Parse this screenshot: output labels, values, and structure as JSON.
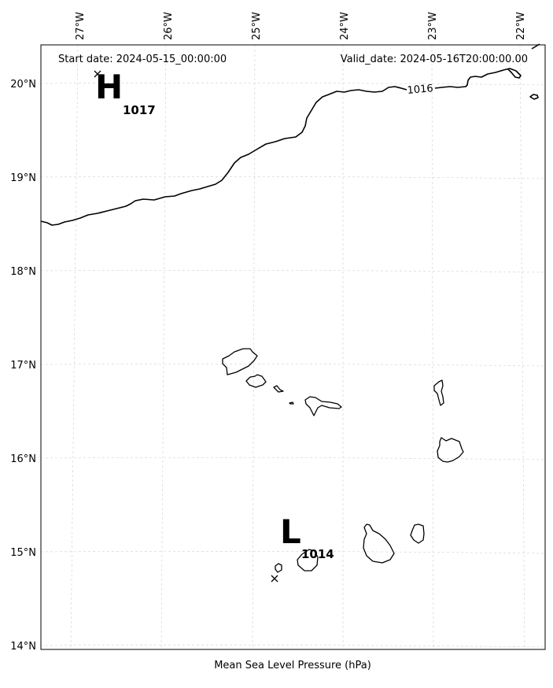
{
  "header": {
    "start_date": "Start date: 2024-05-15_00:00:00",
    "valid_date": "Valid_date: 2024-05-16T20:00:00.00"
  },
  "axes": {
    "xlabel": "Mean Sea Level Pressure (hPa)",
    "lon_ticks": [
      {
        "lon": -27,
        "label": "27°W"
      },
      {
        "lon": -26,
        "label": "26°W"
      },
      {
        "lon": -25,
        "label": "25°W"
      },
      {
        "lon": -24,
        "label": "24°W"
      },
      {
        "lon": -23,
        "label": "23°W"
      },
      {
        "lon": -22,
        "label": "22°W"
      }
    ],
    "lat_ticks": [
      {
        "lat": 20,
        "label": "20°N"
      },
      {
        "lat": 19,
        "label": "19°N"
      },
      {
        "lat": 18,
        "label": "18°N"
      },
      {
        "lat": 17,
        "label": "17°N"
      },
      {
        "lat": 16,
        "label": "16°N"
      },
      {
        "lat": 15,
        "label": "15°N"
      },
      {
        "lat": 14,
        "label": "14°N"
      }
    ],
    "lon_range": [
      -27.34,
      -21.6
    ],
    "lat_range": [
      13.96,
      20.42
    ],
    "grid": true
  },
  "pressure_systems": [
    {
      "type": "high",
      "letter": "H",
      "value": "1017",
      "lon": -26.85,
      "lat": 20.03
    },
    {
      "type": "low",
      "letter": "L",
      "value": "1014",
      "lon": -24.8,
      "lat": 14.7
    }
  ],
  "isobars": [
    {
      "value": "1016",
      "label": "1016"
    }
  ],
  "colors": {
    "background": "#ffffff",
    "coastline": "#000000",
    "isobar": "#000000",
    "grid": "#cfcfcf"
  }
}
